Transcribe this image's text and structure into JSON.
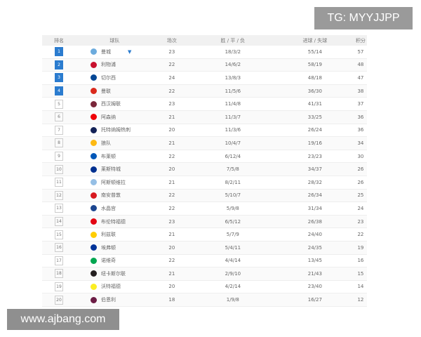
{
  "watermarks": {
    "top": "TG: MYYJJPP",
    "bottom": "www.ajbang.com"
  },
  "headers": {
    "rank": "排名",
    "team": "球队",
    "played": "场次",
    "wdl": "胜 / 平 / 负",
    "goals": "进球 / 失球",
    "points": "积分"
  },
  "accent": "#2b7ccf",
  "rows": [
    {
      "rank": "1",
      "team": "曼城",
      "played": "23",
      "wdl": "18/3/2",
      "goals": "55/14",
      "points": "57",
      "color": "#6cabdd",
      "icon": "trophy-icon"
    },
    {
      "rank": "2",
      "team": "利物浦",
      "played": "22",
      "wdl": "14/6/2",
      "goals": "58/19",
      "points": "48",
      "color": "#c8102e"
    },
    {
      "rank": "3",
      "team": "切尔西",
      "played": "24",
      "wdl": "13/8/3",
      "goals": "48/18",
      "points": "47",
      "color": "#034694"
    },
    {
      "rank": "4",
      "team": "曼联",
      "played": "22",
      "wdl": "11/5/6",
      "goals": "36/30",
      "points": "38",
      "color": "#da291c"
    },
    {
      "rank": "5",
      "team": "西汉姆联",
      "played": "23",
      "wdl": "11/4/8",
      "goals": "41/31",
      "points": "37",
      "color": "#7a263a"
    },
    {
      "rank": "6",
      "team": "阿森纳",
      "played": "21",
      "wdl": "11/3/7",
      "goals": "33/25",
      "points": "36",
      "color": "#ef0107"
    },
    {
      "rank": "7",
      "team": "托特纳姆热刺",
      "played": "20",
      "wdl": "11/3/6",
      "goals": "26/24",
      "points": "36",
      "color": "#132257"
    },
    {
      "rank": "8",
      "team": "狼队",
      "played": "21",
      "wdl": "10/4/7",
      "goals": "19/16",
      "points": "34",
      "color": "#fdb913"
    },
    {
      "rank": "9",
      "team": "布莱顿",
      "played": "22",
      "wdl": "6/12/4",
      "goals": "23/23",
      "points": "30",
      "color": "#0057b8"
    },
    {
      "rank": "10",
      "team": "莱斯特城",
      "played": "20",
      "wdl": "7/5/8",
      "goals": "34/37",
      "points": "26",
      "color": "#003090"
    },
    {
      "rank": "11",
      "team": "阿斯顿维拉",
      "played": "21",
      "wdl": "8/2/11",
      "goals": "28/32",
      "points": "26",
      "color": "#95bfe5"
    },
    {
      "rank": "12",
      "team": "南安普敦",
      "played": "22",
      "wdl": "5/10/7",
      "goals": "26/34",
      "points": "25",
      "color": "#d71920"
    },
    {
      "rank": "13",
      "team": "水晶宫",
      "played": "22",
      "wdl": "5/9/8",
      "goals": "31/34",
      "points": "24",
      "color": "#1b458f"
    },
    {
      "rank": "14",
      "team": "布伦特福德",
      "played": "23",
      "wdl": "6/5/12",
      "goals": "26/38",
      "points": "23",
      "color": "#e30613"
    },
    {
      "rank": "15",
      "team": "利兹联",
      "played": "21",
      "wdl": "5/7/9",
      "goals": "24/40",
      "points": "22",
      "color": "#ffcd00"
    },
    {
      "rank": "16",
      "team": "埃弗顿",
      "played": "20",
      "wdl": "5/4/11",
      "goals": "24/35",
      "points": "19",
      "color": "#003399"
    },
    {
      "rank": "17",
      "team": "诺维奇",
      "played": "22",
      "wdl": "4/4/14",
      "goals": "13/45",
      "points": "16",
      "color": "#00a650"
    },
    {
      "rank": "18",
      "team": "纽卡斯尔联",
      "played": "21",
      "wdl": "2/9/10",
      "goals": "21/43",
      "points": "15",
      "color": "#241f20"
    },
    {
      "rank": "19",
      "team": "沃特福德",
      "played": "20",
      "wdl": "4/2/14",
      "goals": "23/40",
      "points": "14",
      "color": "#fbee23"
    },
    {
      "rank": "20",
      "team": "伯恩利",
      "played": "18",
      "wdl": "1/9/8",
      "goals": "16/27",
      "points": "12",
      "color": "#6c1d45"
    }
  ]
}
